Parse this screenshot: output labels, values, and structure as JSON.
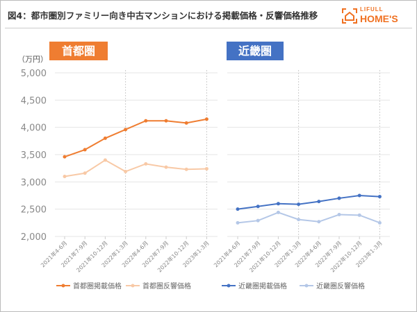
{
  "title": "図4：都市圏別ファミリー向き中古マンションにおける掲載価格・反響価格推移",
  "logo": {
    "line1": "LIFULL",
    "line2": "HOME'S"
  },
  "unit_label": "（万円）",
  "colors": {
    "tokyo_listing": "#ef7d31",
    "tokyo_response": "#f8c9a6",
    "kinki_listing": "#4472c4",
    "kinki_response": "#b4c7e7"
  },
  "chart_data": [
    {
      "type": "line",
      "title": "首都圏",
      "categories": [
        "2021年4-6月",
        "2021年7-9月",
        "2021年10-12月",
        "2022年1-3月",
        "2022年4-6月",
        "2022年7-9月",
        "2022年10-12月",
        "2023年1-3月"
      ],
      "ylim": [
        2000,
        5000
      ],
      "yticks": [
        "2,000",
        "2,500",
        "3,000",
        "3,500",
        "4,000",
        "4,500",
        "5,000"
      ],
      "grid": true,
      "legend": "bottom",
      "series": [
        {
          "name": "首都圏掲載価格",
          "values": [
            3460,
            3590,
            3800,
            3960,
            4120,
            4120,
            4080,
            4150
          ]
        },
        {
          "name": "首都圏反響価格",
          "values": [
            3100,
            3160,
            3400,
            3190,
            3330,
            3270,
            3230,
            3240
          ]
        }
      ]
    },
    {
      "type": "line",
      "title": "近畿圏",
      "categories": [
        "2021年4-6月",
        "2021年7-9月",
        "2021年10-12月",
        "2022年1-3月",
        "2022年4-6月",
        "2022年7-9月",
        "2022年10-12月",
        "2023年1-3月"
      ],
      "ylim": [
        2000,
        5000
      ],
      "grid": true,
      "legend": "bottom",
      "series": [
        {
          "name": "近畿圏掲載価格",
          "values": [
            2500,
            2550,
            2600,
            2590,
            2640,
            2700,
            2750,
            2730
          ]
        },
        {
          "name": "近畿圏反響価格",
          "values": [
            2250,
            2290,
            2440,
            2310,
            2270,
            2400,
            2390,
            2250
          ]
        }
      ]
    }
  ]
}
